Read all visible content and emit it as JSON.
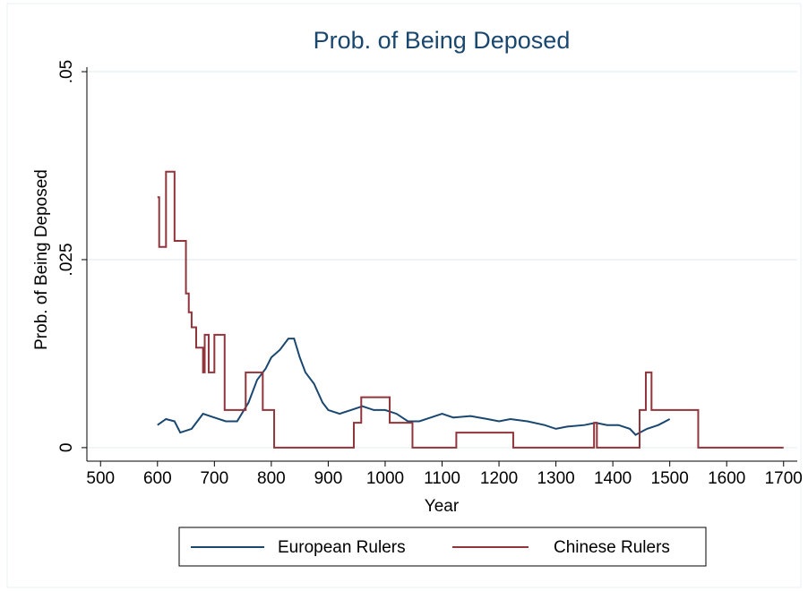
{
  "chart_data": {
    "type": "line",
    "title": "Prob. of Being Deposed",
    "x_label": "Year",
    "y_label": "Prob. of Being Deposed",
    "xlim": [
      476,
      1724
    ],
    "ylim": [
      -0.0018,
      0.0506
    ],
    "xticks": [
      500,
      600,
      700,
      800,
      900,
      1000,
      1100,
      1200,
      1300,
      1400,
      1500,
      1600,
      1700
    ],
    "yticks": [
      0,
      {
        "value": 0.025,
        "label": ".025"
      },
      {
        "value": 0.05,
        "label": ".05"
      }
    ],
    "grid": true,
    "series": [
      {
        "name": "European Rulers",
        "color": "#1a476f",
        "x": [
          600,
          615,
          630,
          640,
          660,
          680,
          700,
          720,
          740,
          760,
          775,
          790,
          800,
          815,
          830,
          840,
          850,
          860,
          875,
          890,
          900,
          920,
          940,
          960,
          980,
          1000,
          1020,
          1040,
          1060,
          1080,
          1100,
          1120,
          1150,
          1180,
          1200,
          1220,
          1250,
          1280,
          1300,
          1320,
          1350,
          1370,
          1390,
          1410,
          1430,
          1440,
          1460,
          1480,
          1500
        ],
        "values": [
          0.003,
          0.0038,
          0.0035,
          0.002,
          0.0025,
          0.0045,
          0.004,
          0.0035,
          0.0035,
          0.006,
          0.009,
          0.0105,
          0.012,
          0.013,
          0.0145,
          0.0145,
          0.012,
          0.01,
          0.0085,
          0.006,
          0.005,
          0.0045,
          0.005,
          0.0055,
          0.005,
          0.005,
          0.0045,
          0.0035,
          0.0035,
          0.004,
          0.0045,
          0.004,
          0.0042,
          0.0038,
          0.0035,
          0.0038,
          0.0035,
          0.003,
          0.0025,
          0.0028,
          0.003,
          0.0033,
          0.003,
          0.003,
          0.0025,
          0.0017,
          0.0025,
          0.003,
          0.0038
        ]
      },
      {
        "name": "Chinese Rulers",
        "color": "#90353b",
        "x": [
          600,
          603,
          603,
          615,
          615,
          630,
          630,
          650,
          650,
          655,
          655,
          660,
          660,
          668,
          668,
          680,
          680,
          683,
          683,
          690,
          690,
          700,
          700,
          718,
          718,
          755,
          755,
          785,
          785,
          805,
          805,
          945,
          945,
          958,
          958,
          1008,
          1008,
          1048,
          1048,
          1125,
          1125,
          1225,
          1225,
          1367,
          1367,
          1372,
          1372,
          1447,
          1447,
          1458,
          1458,
          1468,
          1468,
          1550,
          1550,
          1700
        ],
        "values": [
          0.0333,
          0.0333,
          0.0267,
          0.0267,
          0.0367,
          0.0367,
          0.0275,
          0.0275,
          0.0205,
          0.0205,
          0.018,
          0.018,
          0.016,
          0.016,
          0.0133,
          0.0133,
          0.01,
          0.01,
          0.015,
          0.015,
          0.01,
          0.01,
          0.015,
          0.015,
          0.005,
          0.005,
          0.01,
          0.01,
          0.005,
          0.005,
          0,
          0,
          0.0033,
          0.0033,
          0.0067,
          0.0067,
          0.0033,
          0.0033,
          0,
          0,
          0.002,
          0.002,
          0,
          0,
          0.0033,
          0.0033,
          0,
          0,
          0.005,
          0.005,
          0.01,
          0.01,
          0.005,
          0.005,
          0,
          0
        ]
      }
    ]
  }
}
